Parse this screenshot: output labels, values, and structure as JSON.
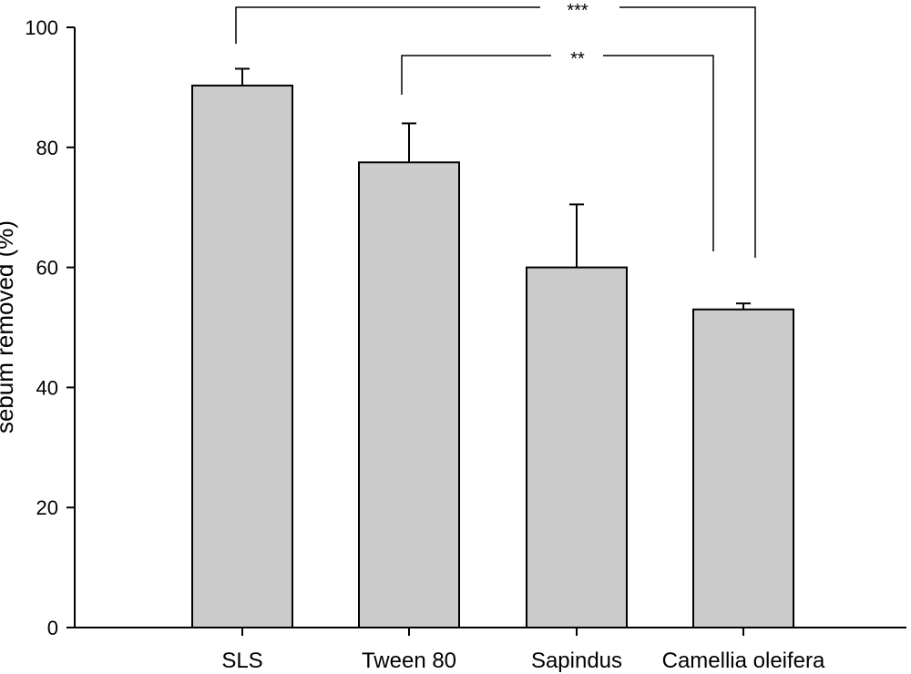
{
  "chart_data": {
    "type": "bar",
    "title": "",
    "xlabel": "",
    "ylabel": "sebum removed (%)",
    "ylim": [
      0,
      100
    ],
    "yticks": [
      0,
      20,
      40,
      60,
      80,
      100
    ],
    "grid": false,
    "categories": [
      "SLS",
      "Tween 80",
      "Sapindus",
      "Camellia oleifera"
    ],
    "values": [
      90.3,
      77.5,
      60.0,
      53.0
    ],
    "errors": [
      2.8,
      6.5,
      10.5,
      1.0
    ],
    "bar_color": "#cccccc",
    "edge_color": "#000000",
    "significance": [
      {
        "from": "SLS",
        "to": "Camellia oleifera",
        "label": "***"
      },
      {
        "from": "Tween 80",
        "to": "Camellia oleifera",
        "label": "**"
      }
    ]
  }
}
